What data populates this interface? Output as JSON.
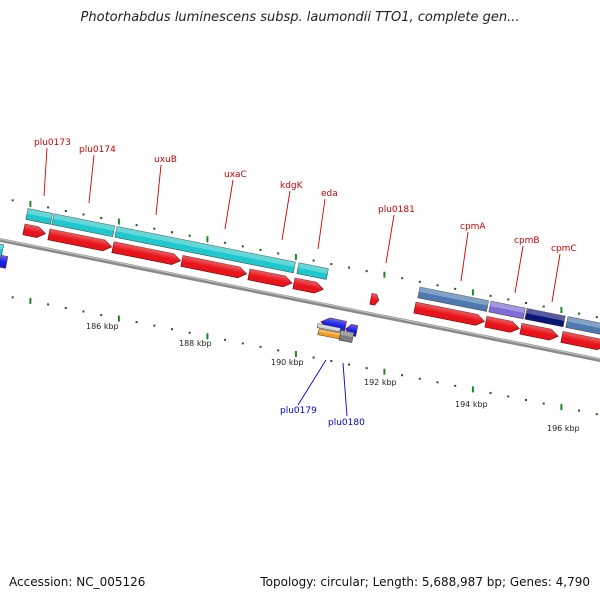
{
  "title": "Photorhabdus luminescens subsp. laumondii TTO1, complete gen...",
  "accession": "Accession: NC_005126",
  "topology": "Topology: circular; Length: 5,688,987 bp; Genes: 4,790",
  "scale_labels": [
    "186 kbp",
    "188 kbp",
    "190 kbp",
    "192 kbp",
    "194 kbp",
    "196 kbp"
  ],
  "top_genes": [
    "plu0173",
    "plu0174",
    "uxuB",
    "uxaC",
    "kdgK",
    "eda",
    "plu0181",
    "cpmA",
    "cpmB",
    "cpmC"
  ],
  "bottom_genes": [
    "plu0179",
    "plu0180"
  ],
  "colors": {
    "backbone": "#8a8a8a",
    "forward_gene": "#e8131b",
    "cds_cyan": "#1fc8cc",
    "cds_steel": "#4d79b0",
    "cds_purple": "#7d6bd6",
    "cds_navy": "#0b1577",
    "reverse_gene": "#1520e6",
    "orange": "#f49a1f",
    "gray": "#7c7c7c",
    "top_label": "#cc0000",
    "bottom_label": "#0000cc",
    "tick": "#1a8a1a"
  }
}
